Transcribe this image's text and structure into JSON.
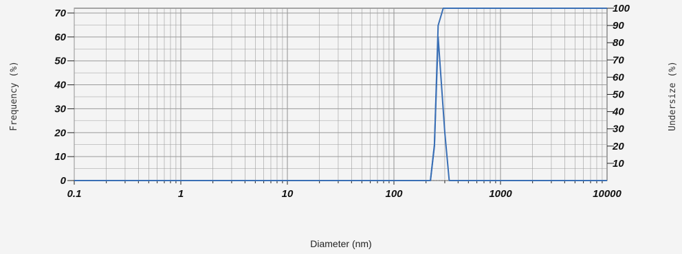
{
  "chart_data": {
    "type": "line",
    "xscale": "log",
    "xlabel": "Diameter (nm)",
    "ylabel": "Frequency (%)",
    "y2label": "Undersize (%)",
    "xlim": [
      0.1,
      10000
    ],
    "ylim": [
      0,
      72
    ],
    "y2lim": [
      0,
      100
    ],
    "xticks": [
      "0.1",
      "1",
      "10",
      "100",
      "1000",
      "10000"
    ],
    "yticks": [
      "0",
      "10",
      "20",
      "30",
      "40",
      "50",
      "60",
      "70"
    ],
    "y2ticks": [
      "10",
      "20",
      "30",
      "40",
      "50",
      "60",
      "70",
      "80",
      "90",
      "100"
    ],
    "grid": true,
    "colors": {
      "series": "#3a6fb5",
      "grid": "#9a9a9a"
    },
    "series": [
      {
        "axis": "left",
        "x": [
          0.1,
          220,
          240,
          260,
          300,
          330,
          10000
        ],
        "y": [
          0,
          0,
          15,
          60,
          20,
          0,
          0
        ]
      },
      {
        "axis": "right",
        "x": [
          0.1,
          220,
          240,
          260,
          290,
          10000
        ],
        "y": [
          0,
          0,
          20,
          90,
          100,
          100
        ]
      }
    ]
  }
}
